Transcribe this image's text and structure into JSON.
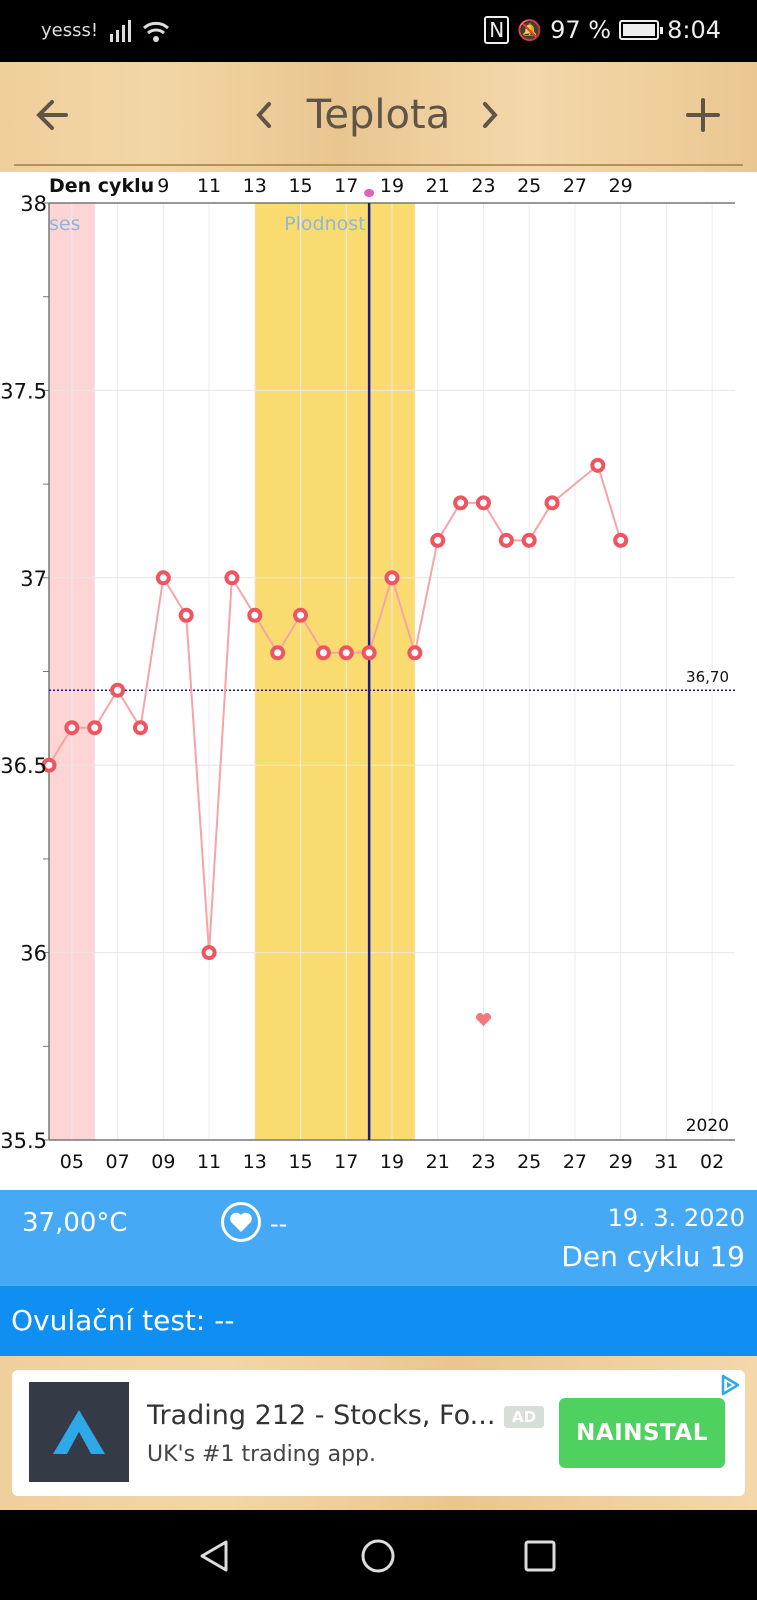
{
  "status": {
    "carrier": "yesss!",
    "battery": "97 %",
    "time": "8:04",
    "battery_level": 0.97
  },
  "toolbar": {
    "title": "Teplota",
    "back_icon": "arrow-left-icon",
    "prev_icon": "chevron-left-icon",
    "next_icon": "chevron-right-icon",
    "add_icon": "plus-icon"
  },
  "chart_data": {
    "type": "line",
    "top_axis_label": "Den cyklu",
    "top_ticks": [
      "9",
      "11",
      "13",
      "15",
      "17",
      "19",
      "21",
      "23",
      "25",
      "27",
      "29"
    ],
    "bottom_ticks": [
      "05",
      "07",
      "09",
      "11",
      "13",
      "15",
      "17",
      "19",
      "21",
      "23",
      "25",
      "27",
      "29",
      "31",
      "02"
    ],
    "y_ticks": [
      "38",
      "37.5",
      "37",
      "36.5",
      "36",
      "35.5"
    ],
    "ylim": [
      35.5,
      38
    ],
    "x_day_range": [
      4,
      34
    ],
    "year_label": "2020",
    "baseline": {
      "value": 36.7,
      "label": "36,70"
    },
    "menses_label": "ses",
    "menses_band": [
      4,
      6
    ],
    "fertile_label": "Plodnost",
    "fertile_band": [
      13,
      20
    ],
    "selected_day": 18,
    "heart_day": 23,
    "series": [
      {
        "x": [
          4,
          5,
          6,
          7,
          8,
          9,
          10,
          11,
          12,
          13,
          14,
          15,
          16,
          17,
          18,
          19,
          20,
          21,
          22,
          23,
          24,
          25,
          26,
          28,
          29
        ],
        "values": [
          36.5,
          36.6,
          36.6,
          36.7,
          36.6,
          37.0,
          36.9,
          36.0,
          37.0,
          36.9,
          36.8,
          36.9,
          36.8,
          36.8,
          36.8,
          37.0,
          36.8,
          37.1,
          37.2,
          37.2,
          37.1,
          37.1,
          37.2,
          37.3,
          37.1
        ]
      }
    ],
    "colors": {
      "line": "#f5a5a5",
      "point": "#ee5560",
      "menses": "#fdd5d5",
      "fertile": "#fadb70",
      "selected": "#1a1a8c",
      "baseline": "#1a1a8c"
    }
  },
  "info": {
    "temperature": "37,00°C",
    "heart_value": "--",
    "date": "19. 3. 2020",
    "cycle_day": "Den cyklu 19"
  },
  "ovulation": {
    "text": "Ovulační test: --"
  },
  "ad": {
    "title": "Trading 212 - Stocks, Fo...",
    "badge": "AD",
    "subtitle": "UK's #1 trading app.",
    "install": "NAINSTAL"
  }
}
